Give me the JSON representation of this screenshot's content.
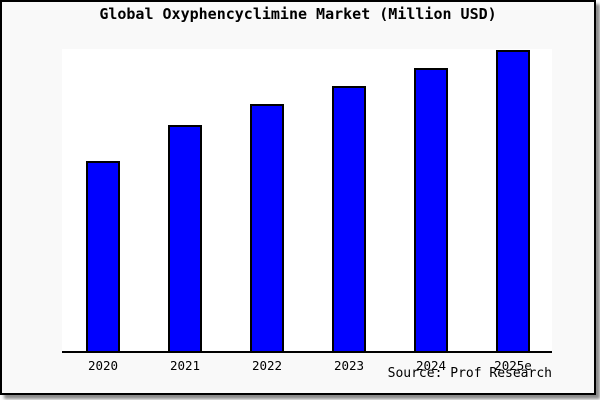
{
  "title": "Global Oxyphencyclimine Market (Million USD)",
  "source_credit": "Source: Prof Research",
  "colors": {
    "bar_fill": "#0000ff",
    "bar_border": "#000000",
    "frame_background": "#f9f9f9",
    "plot_background": "#ffffff",
    "axis_line": "#000000",
    "frame_border": "#000000",
    "shadow": "#8a8a8a",
    "text": "#000000"
  },
  "chart_data": {
    "type": "bar",
    "title": "Global Oxyphencyclimine Market (Million USD)",
    "categories": [
      "2020",
      "2021",
      "2022",
      "2023",
      "2024",
      "2025e"
    ],
    "values": [
      63,
      75,
      82,
      88,
      94,
      100
    ],
    "values_note": "No y-axis ticks or data labels are shown in the image; values are relative bar heights normalized so 2025e = 100.",
    "xlabel": "",
    "ylabel": "",
    "grid": false,
    "legend_position": "none",
    "annotation": "Source: Prof Research"
  }
}
